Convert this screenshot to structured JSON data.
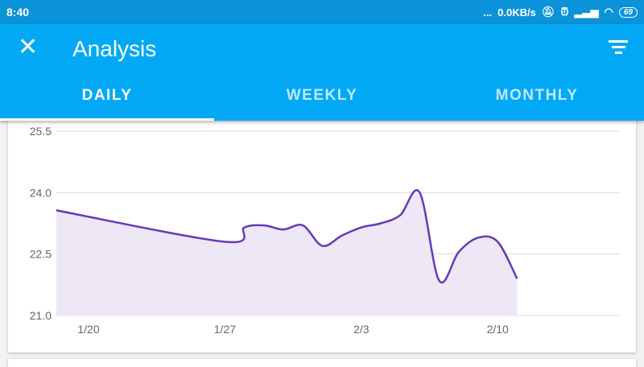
{
  "status": {
    "time": "8:40",
    "more": "...",
    "speed": "0.0KB/s",
    "battery": "69"
  },
  "appbar": {
    "title": "Analysis",
    "close_icon": "close-icon",
    "filter_icon": "filter-icon"
  },
  "tabs": [
    {
      "label": "DAILY",
      "active": true
    },
    {
      "label": "WEEKLY",
      "active": false
    },
    {
      "label": "MONTHLY",
      "active": false
    }
  ],
  "colors": {
    "appbar": "#03a9f4",
    "status": "#0a93d8",
    "line": "#673ab7",
    "fill": "#ede7f6"
  },
  "chart_data": {
    "type": "area",
    "ylim": [
      21.0,
      25.5
    ],
    "yticks": [
      "21.0",
      "22.5",
      "24.0",
      "25.5"
    ],
    "xticks": [
      "1/20",
      "1/27",
      "2/3",
      "2/10"
    ],
    "grid": true,
    "x": [
      "1/18",
      "1/27",
      "1/28",
      "1/29",
      "1/30",
      "1/31",
      "2/1",
      "2/2",
      "2/3",
      "2/4",
      "2/5",
      "2/6",
      "2/7",
      "2/8",
      "2/9",
      "2/10",
      "2/11"
    ],
    "values": [
      23.6,
      22.8,
      23.15,
      23.2,
      23.1,
      23.2,
      22.7,
      22.95,
      23.15,
      23.25,
      23.45,
      24.0,
      21.85,
      22.55,
      22.9,
      22.8,
      21.9
    ]
  }
}
